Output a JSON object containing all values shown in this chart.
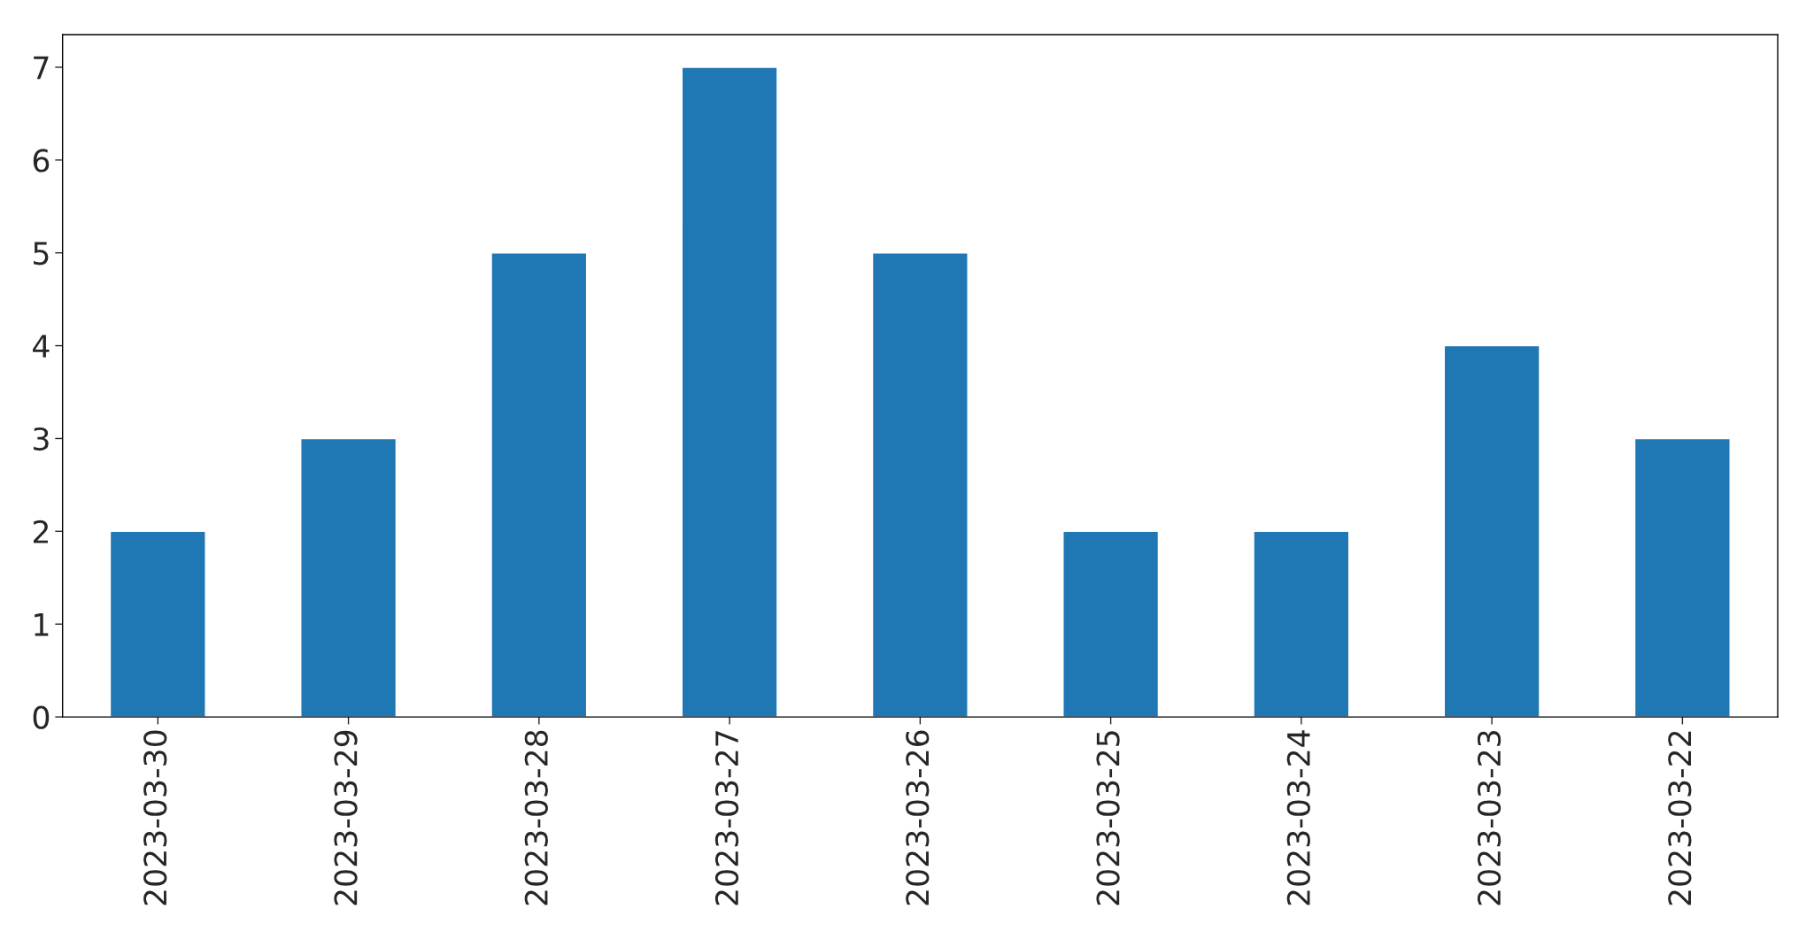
{
  "chart_data": {
    "type": "bar",
    "categories": [
      "2023-03-30",
      "2023-03-29",
      "2023-03-28",
      "2023-03-27",
      "2023-03-26",
      "2023-03-25",
      "2023-03-24",
      "2023-03-23",
      "2023-03-22"
    ],
    "values": [
      2,
      3,
      5,
      7,
      5,
      2,
      2,
      4,
      3
    ],
    "color": "#1f77b4",
    "ylim": [
      0,
      7.35
    ],
    "yticks": [
      0,
      1,
      2,
      3,
      4,
      5,
      6,
      7
    ],
    "grid": false,
    "legend": false
  }
}
